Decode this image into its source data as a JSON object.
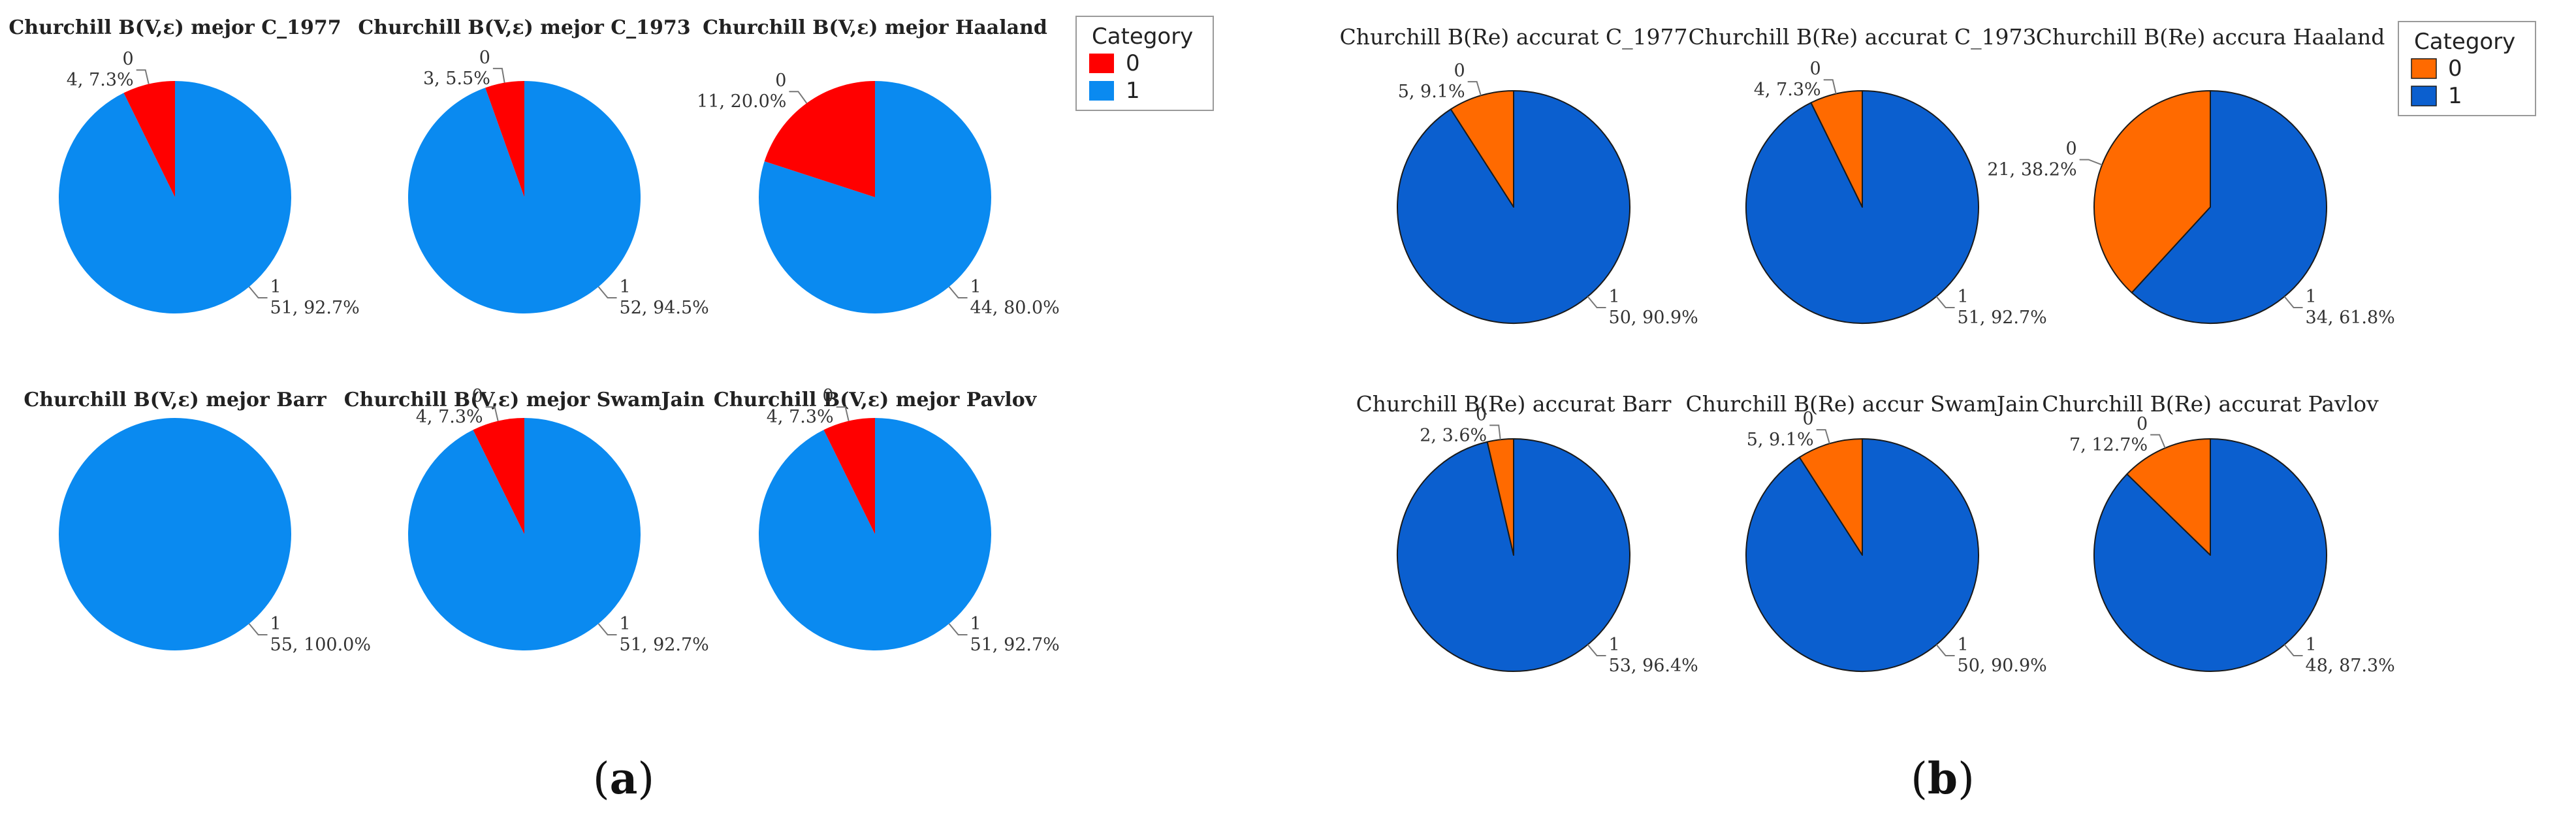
{
  "panels": [
    {
      "caption_pre": "(",
      "caption_letter": "a",
      "caption_post": ")",
      "legend": {
        "title": "Category",
        "items": [
          {
            "label": "0",
            "color": "#ff0000"
          },
          {
            "label": "1",
            "color": "#0a8af0"
          }
        ]
      },
      "slice_stroke": "none"
    },
    {
      "caption_pre": "(",
      "caption_letter": "b",
      "caption_post": ")",
      "legend": {
        "title": "Category",
        "items": [
          {
            "label": "0",
            "color": "#ff6a00"
          },
          {
            "label": "1",
            "color": "#0b5fcf"
          }
        ]
      },
      "slice_stroke": "#1a1a1a"
    }
  ],
  "chart_data": [
    {
      "type": "pie",
      "panel": "a",
      "title": "Churchill B(V,ε) mejor C_1977",
      "categories": [
        "0",
        "1"
      ],
      "values": [
        4,
        51
      ],
      "labels": [
        {
          "cat": "0",
          "text": "4, 7.3%"
        },
        {
          "cat": "1",
          "text": "51, 92.7%"
        }
      ]
    },
    {
      "type": "pie",
      "panel": "a",
      "title": "Churchill B(V,ε) mejor C_1973",
      "categories": [
        "0",
        "1"
      ],
      "values": [
        3,
        52
      ],
      "labels": [
        {
          "cat": "0",
          "text": "3, 5.5%"
        },
        {
          "cat": "1",
          "text": "52, 94.5%"
        }
      ]
    },
    {
      "type": "pie",
      "panel": "a",
      "title": "Churchill B(V,ε) mejor Haaland",
      "categories": [
        "0",
        "1"
      ],
      "values": [
        11,
        44
      ],
      "labels": [
        {
          "cat": "0",
          "text": "11, 20.0%"
        },
        {
          "cat": "1",
          "text": "44, 80.0%"
        }
      ]
    },
    {
      "type": "pie",
      "panel": "a",
      "title": "Churchill B(V,ε) mejor Barr",
      "categories": [
        "0",
        "1"
      ],
      "values": [
        0,
        55
      ],
      "labels": [
        {
          "cat": "1",
          "text": "55, 100.0%"
        }
      ]
    },
    {
      "type": "pie",
      "panel": "a",
      "title": "Churchill B(V,ε) mejor SwamJain",
      "categories": [
        "0",
        "1"
      ],
      "values": [
        4,
        51
      ],
      "labels": [
        {
          "cat": "0",
          "text": "4, 7.3%"
        },
        {
          "cat": "1",
          "text": "51, 92.7%"
        }
      ]
    },
    {
      "type": "pie",
      "panel": "a",
      "title": "Churchill B(V,ε) mejor Pavlov",
      "categories": [
        "0",
        "1"
      ],
      "values": [
        4,
        51
      ],
      "labels": [
        {
          "cat": "0",
          "text": "4, 7.3%"
        },
        {
          "cat": "1",
          "text": "51, 92.7%"
        }
      ]
    },
    {
      "type": "pie",
      "panel": "b",
      "title": "Churchill B(Re) accurat C_1977",
      "categories": [
        "0",
        "1"
      ],
      "values": [
        5,
        50
      ],
      "labels": [
        {
          "cat": "0",
          "text": "5, 9.1%"
        },
        {
          "cat": "1",
          "text": "50, 90.9%"
        }
      ]
    },
    {
      "type": "pie",
      "panel": "b",
      "title": "Churchill B(Re) accurat C_1973",
      "categories": [
        "0",
        "1"
      ],
      "values": [
        4,
        51
      ],
      "labels": [
        {
          "cat": "0",
          "text": "4, 7.3%"
        },
        {
          "cat": "1",
          "text": "51, 92.7%"
        }
      ]
    },
    {
      "type": "pie",
      "panel": "b",
      "title": "Churchill B(Re) accura Haaland",
      "categories": [
        "0",
        "1"
      ],
      "values": [
        21,
        34
      ],
      "labels": [
        {
          "cat": "0",
          "text": "21, 38.2%"
        },
        {
          "cat": "1",
          "text": "34, 61.8%"
        }
      ]
    },
    {
      "type": "pie",
      "panel": "b",
      "title": "Churchill B(Re) accurat Barr",
      "categories": [
        "0",
        "1"
      ],
      "values": [
        2,
        53
      ],
      "labels": [
        {
          "cat": "0",
          "text": "2, 3.6%"
        },
        {
          "cat": "1",
          "text": "53, 96.4%"
        }
      ]
    },
    {
      "type": "pie",
      "panel": "b",
      "title": "Churchill B(Re) accur SwamJain",
      "categories": [
        "0",
        "1"
      ],
      "values": [
        5,
        50
      ],
      "labels": [
        {
          "cat": "0",
          "text": "5, 9.1%"
        },
        {
          "cat": "1",
          "text": "50, 90.9%"
        }
      ]
    },
    {
      "type": "pie",
      "panel": "b",
      "title": "Churchill B(Re) accurat Pavlov",
      "categories": [
        "0",
        "1"
      ],
      "values": [
        7,
        48
      ],
      "labels": [
        {
          "cat": "0",
          "text": "7, 12.7%"
        },
        {
          "cat": "1",
          "text": "48, 87.3%"
        }
      ]
    }
  ]
}
